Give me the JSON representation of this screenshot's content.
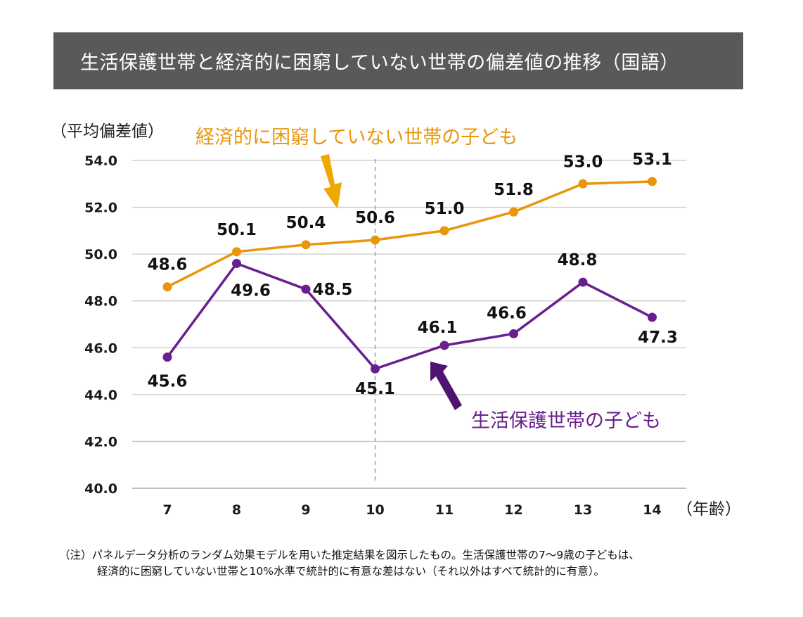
{
  "title": "生活保護世帯と経済的に困窮していない世帯の偏差値の推移（国語）",
  "note": {
    "line1": "（注）パネルデータ分析のランダム効果モデルを用いた推定結果を図示したもの。生活保護世帯の7～9歳の子どもは、",
    "line2": "経済的に困窮していない世帯と10%水準で統計的に有意な差はない（それ以外はすべて統計的に有意）。"
  },
  "colors": {
    "title_bg": "#595959",
    "non_poor": "#E8960C",
    "welfare": "#6A1F8F",
    "arrow_non_poor": "#F0A800",
    "arrow_welfare": "#4E1470",
    "grid": "#C8C8C8"
  },
  "chart_data": {
    "type": "line",
    "ylabel": "（平均偏差値）",
    "xlabel": "（年齢）",
    "categories": [
      "7",
      "8",
      "9",
      "10",
      "11",
      "12",
      "13",
      "14"
    ],
    "ylim": [
      40.0,
      54.0
    ],
    "yticks": [
      "40.0",
      "42.0",
      "44.0",
      "46.0",
      "48.0",
      "50.0",
      "52.0",
      "54.0"
    ],
    "grid": true,
    "reference_line_at": "10",
    "series": [
      {
        "name": "経済的に困窮していない世帯の子ども",
        "values": [
          48.6,
          50.1,
          50.4,
          50.6,
          51.0,
          51.8,
          53.0,
          53.1
        ],
        "labels": [
          "48.6",
          "50.1",
          "50.4",
          "50.6",
          "51.0",
          "51.8",
          "53.0",
          "53.1"
        ],
        "color": "#E8960C"
      },
      {
        "name": "生活保護世帯の子ども",
        "values": [
          45.6,
          49.6,
          48.5,
          45.1,
          46.1,
          46.6,
          48.8,
          47.3
        ],
        "labels": [
          "45.6",
          "49.6",
          "48.5",
          "45.1",
          "46.1",
          "46.6",
          "48.8",
          "47.3"
        ],
        "color": "#6A1F8F"
      }
    ]
  }
}
